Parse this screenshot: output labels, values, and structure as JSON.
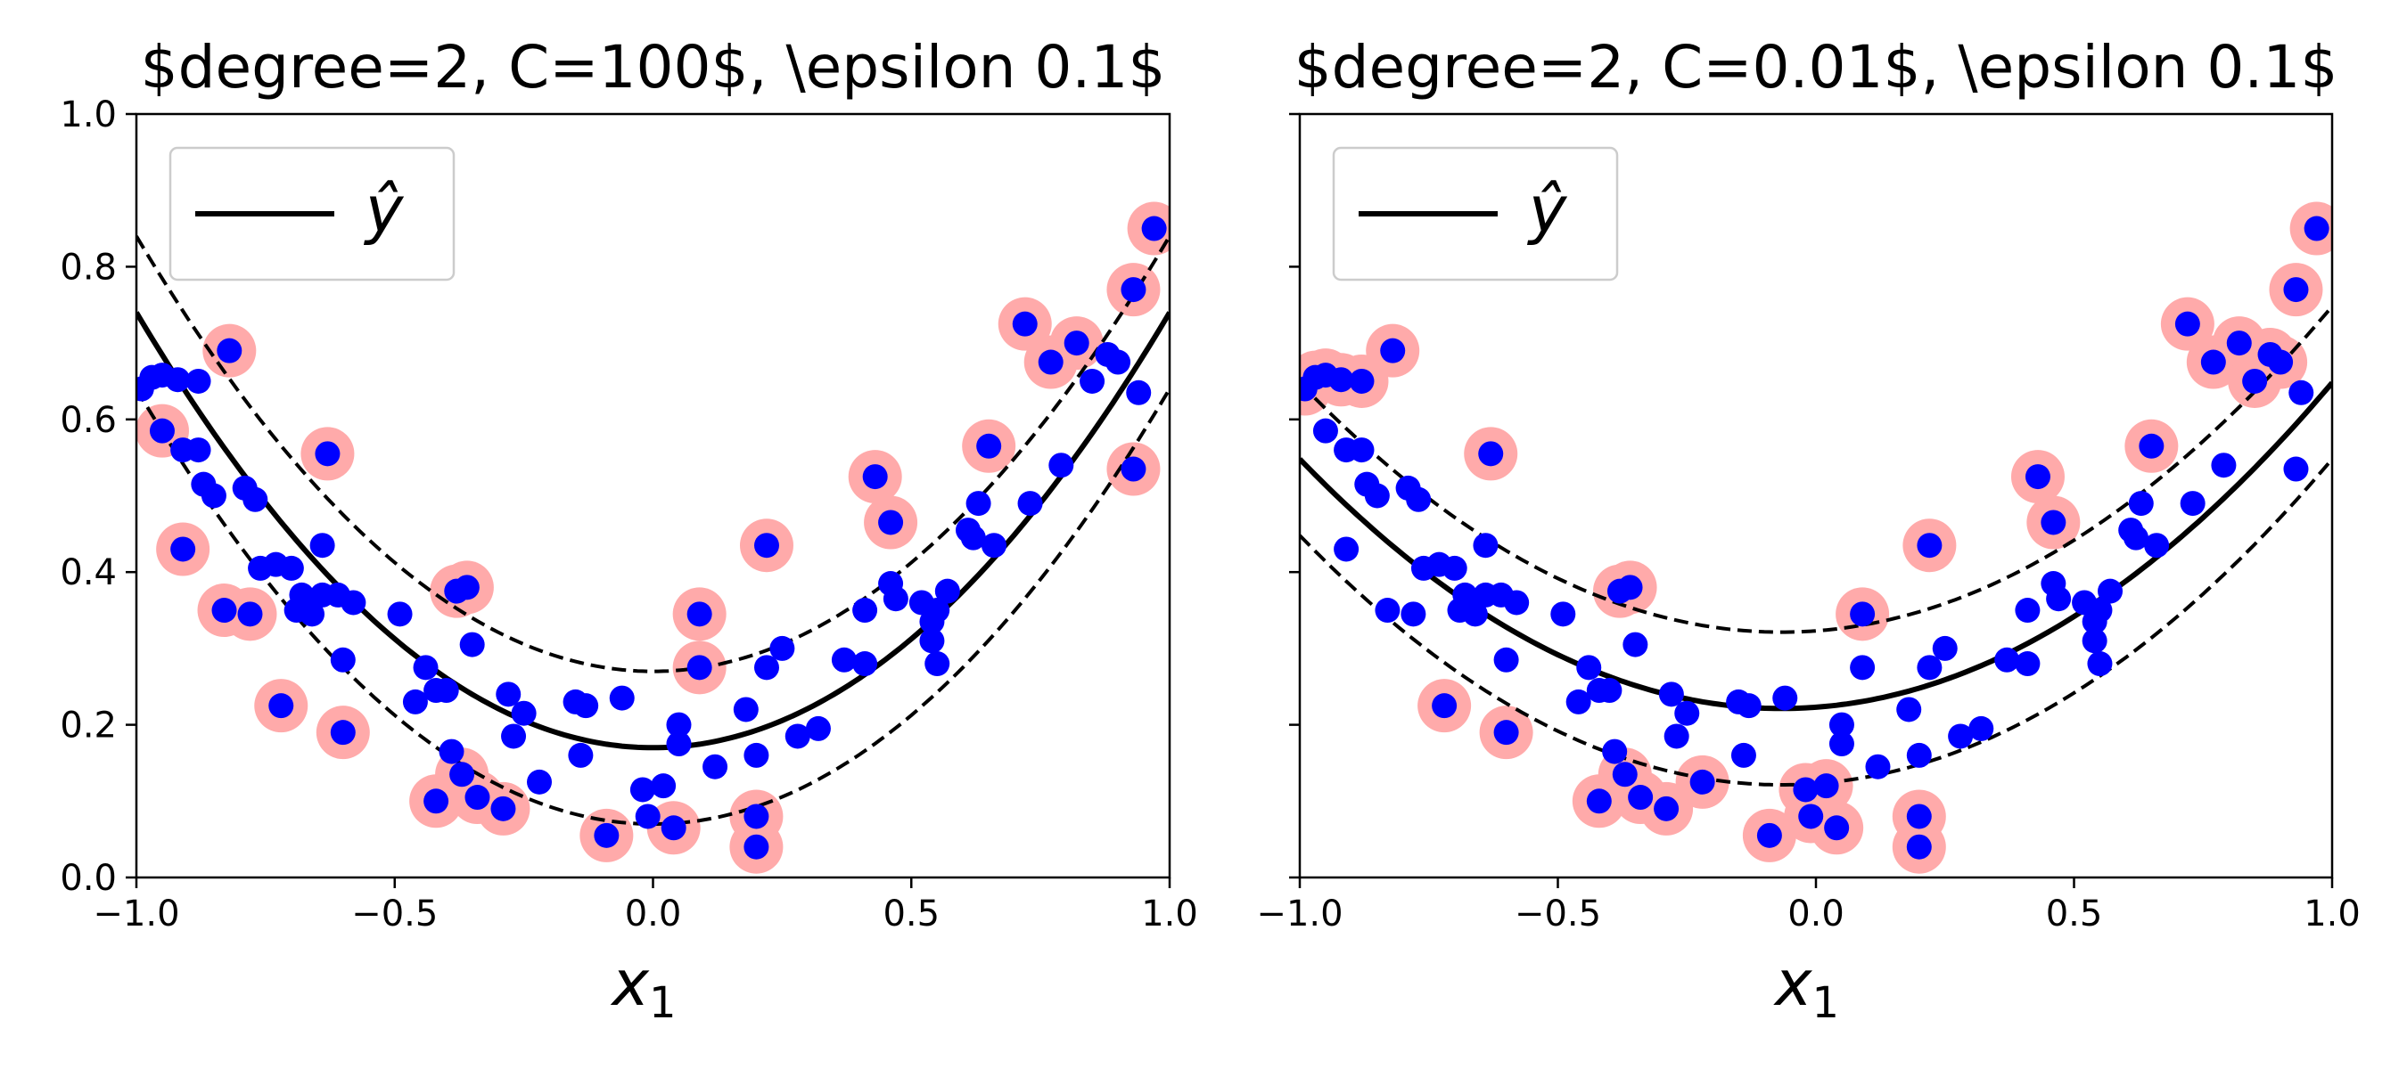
{
  "chart_data": [
    {
      "type": "scatter",
      "title": "$degree=2, C=100$, \\epsilon 0.1$",
      "xlabel": "x",
      "xlabel_sub": "1",
      "ylabel": "",
      "xlim": [
        -1.0,
        1.0
      ],
      "ylim": [
        0.0,
        1.0
      ],
      "xticks": [
        "−1.0",
        "−0.5",
        "0.0",
        "0.5",
        "1.0"
      ],
      "yticks": [
        "0.0",
        "0.2",
        "0.4",
        "0.6",
        "0.8",
        "1.0"
      ],
      "legend": {
        "placement": "top-left",
        "label": "ŷ"
      },
      "grid": false,
      "line_color": "#000000",
      "point_color": "#0000ff",
      "support_vector_color": "#ffaaaa",
      "model_curve": {
        "coefficients": [
          0.17,
          0.0,
          0.57
        ],
        "epsilon": 0.1,
        "form": "y = a0 + a1*x + a2*x^2"
      },
      "points": [
        [
          -0.99,
          0.64
        ],
        [
          -0.97,
          0.655
        ],
        [
          -0.95,
          0.658
        ],
        [
          -0.92,
          0.652
        ],
        [
          -0.88,
          0.65
        ],
        [
          -0.95,
          0.585
        ],
        [
          -0.91,
          0.56
        ],
        [
          -0.88,
          0.56
        ],
        [
          -0.87,
          0.515
        ],
        [
          -0.85,
          0.5
        ],
        [
          -0.82,
          0.69
        ],
        [
          -0.79,
          0.51
        ],
        [
          -0.77,
          0.495
        ],
        [
          -0.76,
          0.405
        ],
        [
          -0.73,
          0.41
        ],
        [
          -0.7,
          0.405
        ],
        [
          -0.68,
          0.37
        ],
        [
          -0.66,
          0.345
        ],
        [
          -0.64,
          0.37
        ],
        [
          -0.63,
          0.555
        ],
        [
          -0.64,
          0.435
        ],
        [
          -0.61,
          0.37
        ],
        [
          -0.58,
          0.36
        ],
        [
          -0.83,
          0.35
        ],
        [
          -0.78,
          0.345
        ],
        [
          -0.69,
          0.35
        ],
        [
          -0.91,
          0.43
        ],
        [
          -0.72,
          0.225
        ],
        [
          -0.6,
          0.285
        ],
        [
          -0.6,
          0.19
        ],
        [
          -0.49,
          0.345
        ],
        [
          -0.46,
          0.23
        ],
        [
          -0.44,
          0.275
        ],
        [
          -0.42,
          0.245
        ],
        [
          -0.4,
          0.245
        ],
        [
          -0.39,
          0.165
        ],
        [
          -0.38,
          0.375
        ],
        [
          -0.36,
          0.38
        ],
        [
          -0.35,
          0.305
        ],
        [
          -0.37,
          0.135
        ],
        [
          -0.42,
          0.1
        ],
        [
          -0.34,
          0.105
        ],
        [
          -0.29,
          0.09
        ],
        [
          -0.28,
          0.24
        ],
        [
          -0.25,
          0.215
        ],
        [
          -0.27,
          0.185
        ],
        [
          -0.22,
          0.125
        ],
        [
          -0.15,
          0.23
        ],
        [
          -0.13,
          0.225
        ],
        [
          -0.14,
          0.16
        ],
        [
          -0.09,
          0.055
        ],
        [
          -0.06,
          0.235
        ],
        [
          -0.02,
          0.115
        ],
        [
          0.02,
          0.12
        ],
        [
          -0.01,
          0.08
        ],
        [
          0.04,
          0.065
        ],
        [
          0.05,
          0.2
        ],
        [
          0.05,
          0.175
        ],
        [
          0.09,
          0.345
        ],
        [
          0.09,
          0.275
        ],
        [
          0.12,
          0.145
        ],
        [
          0.18,
          0.22
        ],
        [
          0.2,
          0.08
        ],
        [
          0.2,
          0.16
        ],
        [
          0.2,
          0.04
        ],
        [
          0.22,
          0.435
        ],
        [
          0.22,
          0.275
        ],
        [
          0.25,
          0.3
        ],
        [
          0.28,
          0.185
        ],
        [
          0.32,
          0.195
        ],
        [
          0.37,
          0.285
        ],
        [
          0.41,
          0.28
        ],
        [
          0.41,
          0.35
        ],
        [
          0.43,
          0.525
        ],
        [
          0.46,
          0.385
        ],
        [
          0.46,
          0.465
        ],
        [
          0.47,
          0.365
        ],
        [
          0.52,
          0.36
        ],
        [
          0.54,
          0.335
        ],
        [
          0.54,
          0.31
        ],
        [
          0.55,
          0.28
        ],
        [
          0.55,
          0.35
        ],
        [
          0.57,
          0.375
        ],
        [
          0.61,
          0.455
        ],
        [
          0.62,
          0.445
        ],
        [
          0.63,
          0.49
        ],
        [
          0.66,
          0.435
        ],
        [
          0.65,
          0.565
        ],
        [
          0.72,
          0.725
        ],
        [
          0.73,
          0.49
        ],
        [
          0.77,
          0.675
        ],
        [
          0.79,
          0.54
        ],
        [
          0.82,
          0.7
        ],
        [
          0.85,
          0.65
        ],
        [
          0.88,
          0.685
        ],
        [
          0.9,
          0.675
        ],
        [
          0.93,
          0.77
        ],
        [
          0.94,
          0.635
        ],
        [
          0.93,
          0.535
        ],
        [
          0.97,
          0.85
        ]
      ]
    },
    {
      "type": "scatter",
      "title": "$degree=2, C=0.01$, \\epsilon 0.1$",
      "xlabel": "x",
      "xlabel_sub": "1",
      "ylabel": "",
      "xlim": [
        -1.0,
        1.0
      ],
      "ylim": [
        0.0,
        1.0
      ],
      "xticks": [
        "−1.0",
        "−0.5",
        "0.0",
        "0.5",
        "1.0"
      ],
      "yticks": [
        "0.0",
        "0.2",
        "0.4",
        "0.6",
        "0.8",
        "1.0"
      ],
      "legend": {
        "placement": "top-left",
        "label": "ŷ"
      },
      "grid": false,
      "line_color": "#000000",
      "point_color": "#0000ff",
      "support_vector_color": "#ffaaaa",
      "model_curve": {
        "coefficients": [
          0.223,
          0.05,
          0.375
        ],
        "epsilon": 0.1,
        "form": "y = a0 + a1*x + a2*x^2"
      },
      "points": [
        [
          -0.99,
          0.64
        ],
        [
          -0.97,
          0.655
        ],
        [
          -0.95,
          0.658
        ],
        [
          -0.92,
          0.652
        ],
        [
          -0.88,
          0.65
        ],
        [
          -0.95,
          0.585
        ],
        [
          -0.91,
          0.56
        ],
        [
          -0.88,
          0.56
        ],
        [
          -0.87,
          0.515
        ],
        [
          -0.85,
          0.5
        ],
        [
          -0.82,
          0.69
        ],
        [
          -0.79,
          0.51
        ],
        [
          -0.77,
          0.495
        ],
        [
          -0.76,
          0.405
        ],
        [
          -0.73,
          0.41
        ],
        [
          -0.7,
          0.405
        ],
        [
          -0.68,
          0.37
        ],
        [
          -0.66,
          0.345
        ],
        [
          -0.64,
          0.37
        ],
        [
          -0.63,
          0.555
        ],
        [
          -0.64,
          0.435
        ],
        [
          -0.61,
          0.37
        ],
        [
          -0.58,
          0.36
        ],
        [
          -0.83,
          0.35
        ],
        [
          -0.78,
          0.345
        ],
        [
          -0.69,
          0.35
        ],
        [
          -0.91,
          0.43
        ],
        [
          -0.72,
          0.225
        ],
        [
          -0.6,
          0.285
        ],
        [
          -0.6,
          0.19
        ],
        [
          -0.49,
          0.345
        ],
        [
          -0.46,
          0.23
        ],
        [
          -0.44,
          0.275
        ],
        [
          -0.42,
          0.245
        ],
        [
          -0.4,
          0.245
        ],
        [
          -0.39,
          0.165
        ],
        [
          -0.38,
          0.375
        ],
        [
          -0.36,
          0.38
        ],
        [
          -0.35,
          0.305
        ],
        [
          -0.37,
          0.135
        ],
        [
          -0.42,
          0.1
        ],
        [
          -0.34,
          0.105
        ],
        [
          -0.29,
          0.09
        ],
        [
          -0.28,
          0.24
        ],
        [
          -0.25,
          0.215
        ],
        [
          -0.27,
          0.185
        ],
        [
          -0.22,
          0.125
        ],
        [
          -0.15,
          0.23
        ],
        [
          -0.13,
          0.225
        ],
        [
          -0.14,
          0.16
        ],
        [
          -0.09,
          0.055
        ],
        [
          -0.06,
          0.235
        ],
        [
          -0.02,
          0.115
        ],
        [
          0.02,
          0.12
        ],
        [
          -0.01,
          0.08
        ],
        [
          0.04,
          0.065
        ],
        [
          0.05,
          0.2
        ],
        [
          0.05,
          0.175
        ],
        [
          0.09,
          0.345
        ],
        [
          0.09,
          0.275
        ],
        [
          0.12,
          0.145
        ],
        [
          0.18,
          0.22
        ],
        [
          0.2,
          0.08
        ],
        [
          0.2,
          0.16
        ],
        [
          0.2,
          0.04
        ],
        [
          0.22,
          0.435
        ],
        [
          0.22,
          0.275
        ],
        [
          0.25,
          0.3
        ],
        [
          0.28,
          0.185
        ],
        [
          0.32,
          0.195
        ],
        [
          0.37,
          0.285
        ],
        [
          0.41,
          0.28
        ],
        [
          0.41,
          0.35
        ],
        [
          0.43,
          0.525
        ],
        [
          0.46,
          0.385
        ],
        [
          0.46,
          0.465
        ],
        [
          0.47,
          0.365
        ],
        [
          0.52,
          0.36
        ],
        [
          0.54,
          0.335
        ],
        [
          0.54,
          0.31
        ],
        [
          0.55,
          0.28
        ],
        [
          0.55,
          0.35
        ],
        [
          0.57,
          0.375
        ],
        [
          0.61,
          0.455
        ],
        [
          0.62,
          0.445
        ],
        [
          0.63,
          0.49
        ],
        [
          0.66,
          0.435
        ],
        [
          0.65,
          0.565
        ],
        [
          0.72,
          0.725
        ],
        [
          0.73,
          0.49
        ],
        [
          0.77,
          0.675
        ],
        [
          0.79,
          0.54
        ],
        [
          0.82,
          0.7
        ],
        [
          0.85,
          0.65
        ],
        [
          0.88,
          0.685
        ],
        [
          0.9,
          0.675
        ],
        [
          0.93,
          0.77
        ],
        [
          0.94,
          0.635
        ],
        [
          0.93,
          0.535
        ],
        [
          0.97,
          0.85
        ]
      ]
    }
  ]
}
